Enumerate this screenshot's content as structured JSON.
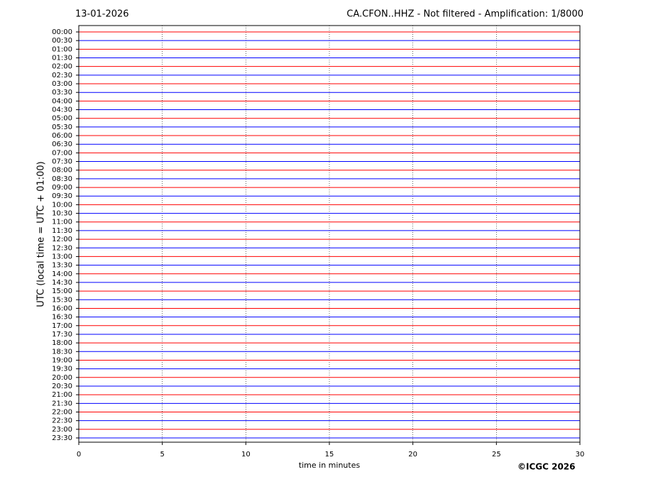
{
  "chart_data": {
    "type": "helicorder",
    "date": "13-01-2026",
    "title": "CA.CFON..HHZ - Not filtered - Amplification: 1/8000",
    "ylabel": "UTC (local time = UTC + 01:00)",
    "xlabel": "time in minutes",
    "credit": "©ICGC 2026",
    "categories": [
      "00:00",
      "00:30",
      "01:00",
      "01:30",
      "02:00",
      "02:30",
      "03:00",
      "03:30",
      "04:00",
      "04:30",
      "05:00",
      "05:30",
      "06:00",
      "06:30",
      "07:00",
      "07:30",
      "08:00",
      "08:30",
      "09:00",
      "09:30",
      "10:00",
      "10:30",
      "11:00",
      "11:30",
      "12:00",
      "12:30",
      "13:00",
      "13:30",
      "14:00",
      "14:30",
      "15:00",
      "15:30",
      "16:00",
      "16:30",
      "17:00",
      "17:30",
      "18:00",
      "18:30",
      "19:00",
      "19:30",
      "20:00",
      "20:30",
      "21:00",
      "21:30",
      "22:00",
      "22:30",
      "23:00",
      "23:30"
    ],
    "colors": [
      "#ff0000",
      "#0000ff"
    ],
    "xlim": [
      0,
      30
    ],
    "xticks": [
      0,
      5,
      10,
      15,
      20,
      25,
      30
    ],
    "grid": true
  }
}
